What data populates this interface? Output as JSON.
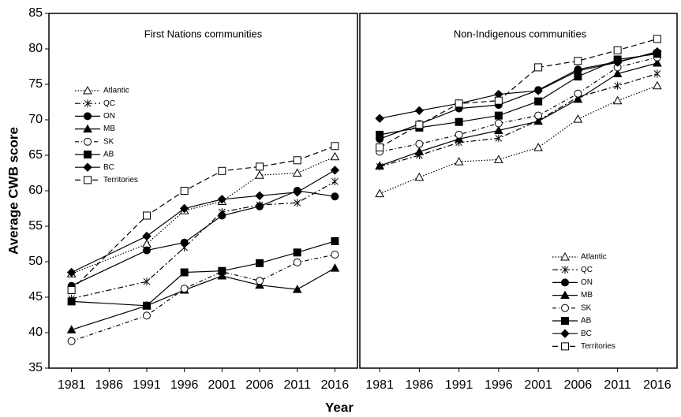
{
  "chart_data": [
    {
      "type": "line",
      "title": "First Nations  communities",
      "ylabel": "Average CWB score",
      "xlabel": "Year",
      "x": [
        1981,
        1991,
        1996,
        2001,
        2006,
        2011,
        2016
      ],
      "xlim": [
        1978,
        2019
      ],
      "xticks": [
        1981,
        1986,
        1991,
        1996,
        2001,
        2006,
        2011,
        2016
      ],
      "ylim": [
        35,
        85
      ],
      "yticks": [
        35,
        40,
        45,
        50,
        55,
        60,
        65,
        70,
        75,
        80,
        85
      ],
      "legend": "upper left",
      "series": [
        {
          "name": "Atlantic",
          "color": "#000000",
          "marker": "triangle-open",
          "dash": "dotted",
          "values": [
            48.3,
            52.5,
            57.2,
            58.5,
            62.2,
            62.5,
            64.8
          ]
        },
        {
          "name": "QC",
          "color": "#000000",
          "marker": "asterisk",
          "dash": "dashed",
          "values": [
            44.8,
            47.2,
            52,
            57,
            58,
            58.3,
            61.3
          ]
        },
        {
          "name": "ON",
          "color": "#000000",
          "marker": "circle",
          "dash": "solid",
          "values": [
            46.6,
            51.6,
            52.7,
            56.5,
            57.8,
            60,
            59.2
          ]
        },
        {
          "name": "MB",
          "color": "#000000",
          "marker": "triangle",
          "dash": "solid",
          "values": [
            40.4,
            43.8,
            46,
            48,
            46.7,
            46.1,
            49.1
          ]
        },
        {
          "name": "SK",
          "color": "#000000",
          "marker": "circle-open",
          "dash": "dash-dot",
          "values": [
            38.8,
            42.4,
            46.2,
            48.6,
            47.3,
            49.9,
            51
          ]
        },
        {
          "name": "AB",
          "color": "#000000",
          "marker": "square",
          "dash": "solid",
          "values": [
            44.4,
            43.8,
            48.5,
            48.7,
            49.8,
            51.3,
            52.9
          ]
        },
        {
          "name": "BC",
          "color": "#000000",
          "marker": "diamond",
          "dash": "solid",
          "values": [
            48.5,
            53.6,
            57.5,
            58.8,
            59.3,
            59.8,
            62.9
          ]
        },
        {
          "name": "Territories",
          "color": "#000000",
          "marker": "square-open",
          "dash": "long-dashed",
          "values": [
            46,
            56.5,
            60,
            62.8,
            63.4,
            64.3,
            66.3
          ]
        }
      ]
    },
    {
      "type": "line",
      "title": "Non-Indigenous  communities",
      "x": [
        1981,
        1986,
        1991,
        1996,
        2001,
        2006,
        2011,
        2016
      ],
      "xlim": [
        1978.5,
        2018.5
      ],
      "xticks": [
        1981,
        1986,
        1991,
        1996,
        2001,
        2006,
        2011,
        2016
      ],
      "ylim": [
        35,
        85
      ],
      "legend": "lower right",
      "series": [
        {
          "name": "Atlantic",
          "color": "#000000",
          "marker": "triangle-open",
          "dash": "dotted",
          "values": [
            59.6,
            61.9,
            64.1,
            64.4,
            66.1,
            70.1,
            72.7,
            74.8
          ]
        },
        {
          "name": "QC",
          "color": "#000000",
          "marker": "asterisk",
          "dash": "dashed",
          "values": [
            63.4,
            65,
            66.8,
            67.4,
            69.9,
            73.2,
            74.8,
            76.5
          ]
        },
        {
          "name": "ON",
          "color": "#000000",
          "marker": "circle",
          "dash": "solid",
          "values": [
            67.3,
            69.4,
            71.6,
            72.1,
            74.2,
            77.1,
            78.2,
            79.5
          ]
        },
        {
          "name": "MB",
          "color": "#000000",
          "marker": "triangle",
          "dash": "solid",
          "values": [
            63.5,
            65.5,
            67.3,
            68.5,
            69.8,
            72.9,
            76.5,
            78
          ]
        },
        {
          "name": "SK",
          "color": "#000000",
          "marker": "circle-open",
          "dash": "dash-dot",
          "values": [
            65.5,
            66.6,
            67.9,
            69.5,
            70.6,
            73.7,
            77.4,
            78.8
          ]
        },
        {
          "name": "AB",
          "color": "#000000",
          "marker": "square",
          "dash": "solid",
          "values": [
            67.9,
            68.9,
            69.7,
            70.6,
            72.6,
            76.1,
            78.5,
            79.3
          ]
        },
        {
          "name": "BC",
          "color": "#000000",
          "marker": "diamond",
          "dash": "solid",
          "values": [
            70.2,
            71.3,
            72.3,
            73.6,
            74.1,
            76.9,
            78.1,
            79.6
          ]
        },
        {
          "name": "Territories",
          "color": "#000000",
          "marker": "square-open",
          "dash": "long-dashed",
          "values": [
            66.1,
            69.3,
            72.3,
            72.7,
            77.4,
            78.3,
            79.8,
            81.4
          ]
        }
      ]
    }
  ]
}
